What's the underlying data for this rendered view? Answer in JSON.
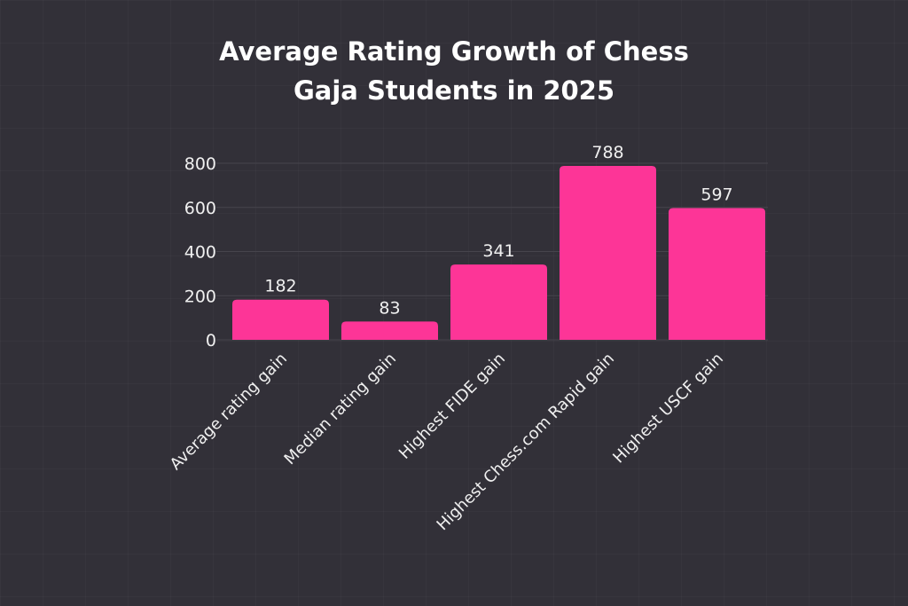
{
  "chart_data": {
    "type": "bar",
    "title_lines": [
      "Average Rating Growth of Chess",
      "Gaja Students in 2025"
    ],
    "categories": [
      "Average rating gain",
      "Median rating gain",
      "Highest FIDE gain",
      "Highest Chess.com Rapid gain",
      "Highest USCF gain"
    ],
    "values": [
      182,
      83,
      341,
      788,
      597
    ],
    "data_labels": [
      "182",
      "83",
      "341",
      "788",
      "597"
    ],
    "yticks": [
      "0",
      "200",
      "400",
      "600",
      "800"
    ],
    "ylim": [
      0,
      800
    ],
    "xlabel": "",
    "ylabel": "",
    "grid": true,
    "bar_color": "#fd3597",
    "background": "#323038"
  }
}
